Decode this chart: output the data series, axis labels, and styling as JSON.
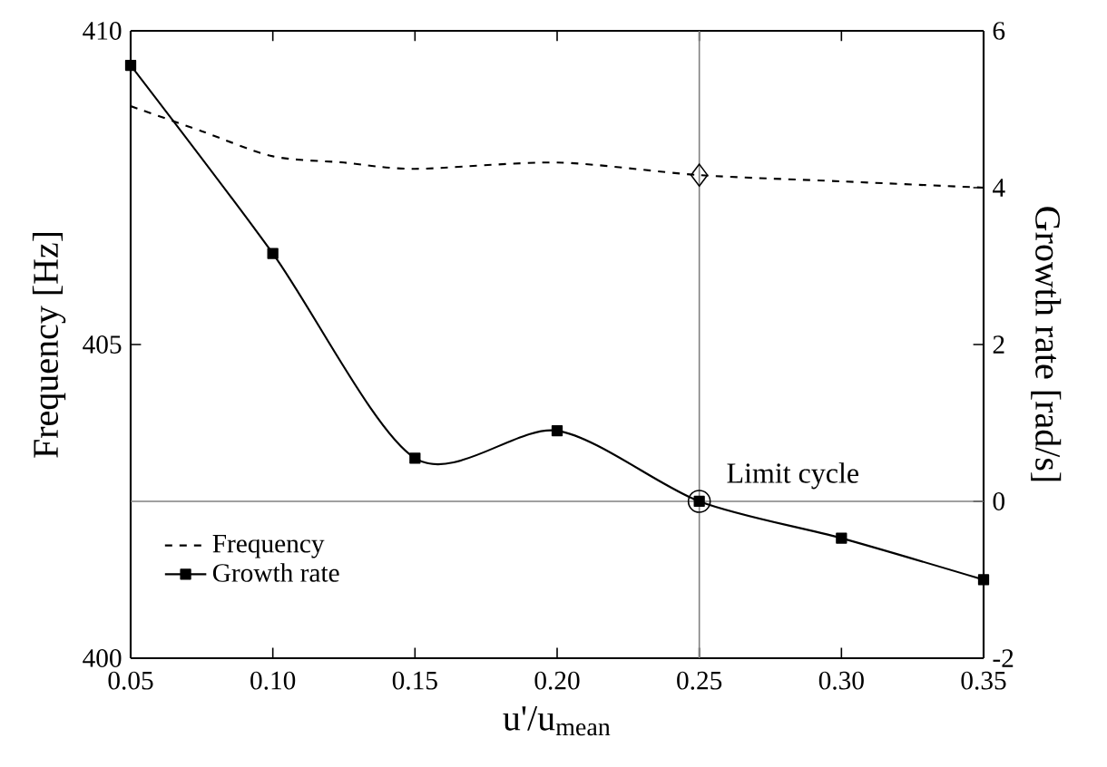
{
  "chart_data": {
    "type": "line",
    "xlabel": "u'/u$_{mean}$",
    "ylabel": "Frequency [Hz]",
    "y2label": "Growth rate [rad/s]",
    "xlim": [
      0.05,
      0.35
    ],
    "xticks": [
      {
        "value": 0.05,
        "label": "0.05"
      },
      {
        "value": 0.1,
        "label": "0.10"
      },
      {
        "value": 0.15,
        "label": "0.15"
      },
      {
        "value": 0.2,
        "label": "0.20"
      },
      {
        "value": 0.25,
        "label": "0.25"
      },
      {
        "value": 0.3,
        "label": "0.30"
      },
      {
        "value": 0.35,
        "label": "0.35"
      }
    ],
    "ylim": [
      400,
      410
    ],
    "yticks": [
      400,
      405,
      410
    ],
    "y2lim": [
      -2,
      6
    ],
    "y2ticks": [
      -2,
      0,
      2,
      4,
      6
    ],
    "series": [
      {
        "name": "Frequency",
        "color": "#000000",
        "line_style": "dashed",
        "marker": "none",
        "x": [
          0.05,
          0.075,
          0.1,
          0.125,
          0.15,
          0.2,
          0.25,
          0.3,
          0.35
        ],
        "values": [
          408.8,
          408.4,
          408.0,
          407.9,
          407.8,
          407.9,
          407.7,
          407.6,
          407.5
        ]
      },
      {
        "name": "Growth rate",
        "color": "#000000",
        "axis": "y2",
        "line_style": "solid",
        "marker": "square",
        "x": [
          0.05,
          0.1,
          0.15,
          0.2,
          0.25,
          0.3,
          0.35
        ],
        "values": [
          5.56,
          3.16,
          0.55,
          0.9,
          0,
          -0.47,
          -1.0
        ]
      },
      {
        "type": "scatter",
        "color": "#000000",
        "marker": "diamond",
        "x": [
          0.25
        ],
        "values": [
          407.7
        ]
      },
      {
        "type": "scatter",
        "color": "#000000",
        "marker": "circle",
        "axis": "y2",
        "x": [
          0.25
        ],
        "values": [
          0
        ]
      }
    ],
    "ref_lines": [
      {
        "axis": "x",
        "value": 0.25,
        "color": "#808080"
      },
      {
        "axis": "y2",
        "value": 0,
        "color": "#808080"
      }
    ],
    "annotations": [
      "Limit cycle"
    ],
    "legend": "bottom left"
  }
}
